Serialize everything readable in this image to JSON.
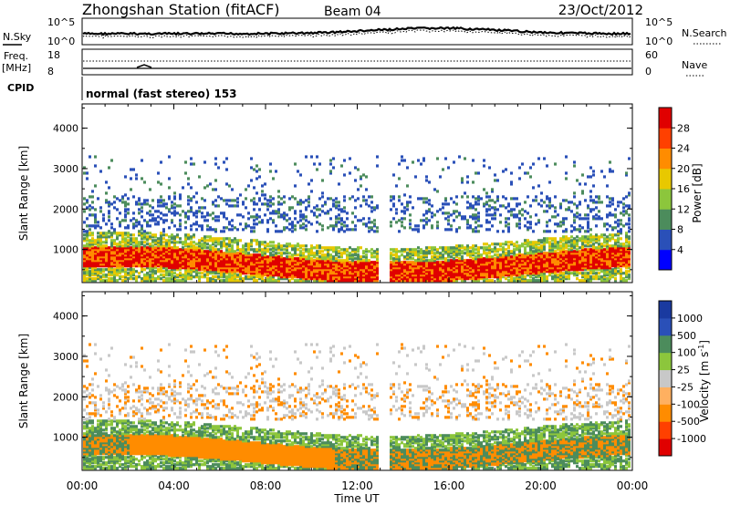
{
  "header": {
    "station": "Zhongshan Station (fitACF)",
    "beam": "Beam 04",
    "date": "23/Oct/2012",
    "mode": "normal (fast stereo) 153"
  },
  "noise_panel": {
    "left_label": "N.Sky",
    "right_label": "N.Search",
    "left_ticks": [
      "10^5",
      "10^0"
    ],
    "right_ticks": [
      "10^5",
      "10^0"
    ]
  },
  "freq_panel": {
    "left_label_1": "Freq.",
    "left_label_2": "[MHz]",
    "cpid_label": "CPID",
    "right_label": "Nave",
    "left_ticks": [
      "18",
      "8"
    ],
    "right_ticks": [
      "60",
      "0"
    ]
  },
  "x_axis": {
    "label": "Time UT",
    "ticks": [
      "00:00",
      "04:00",
      "08:00",
      "12:00",
      "16:00",
      "20:00",
      "00:00"
    ]
  },
  "chart_data": [
    {
      "type": "heatmap",
      "title": "Power",
      "ylabel": "Slant Range [km]",
      "yticks": [
        "1000",
        "2000",
        "3000",
        "4000"
      ],
      "ylim": [
        180,
        4600
      ],
      "colorbar_label": "Power [dB]",
      "colorbar_ticks": [
        "28",
        "24",
        "20",
        "16",
        "12",
        "8",
        "4"
      ],
      "colorbar_colors": [
        "#0000ff",
        "#2a50b8",
        "#4c8c5c",
        "#8cc63c",
        "#e8c800",
        "#ff8c00",
        "#ff4000",
        "#e00000"
      ],
      "colors": {
        "low": "#2a50b8",
        "mid": "#4c8c5c",
        "green": "#8cc63c",
        "yellow": "#e8c800",
        "orange": "#ff8c00",
        "red": "#e00000"
      }
    },
    {
      "type": "heatmap",
      "title": "Velocity",
      "ylabel": "Slant Range [km]",
      "yticks": [
        "1000",
        "2000",
        "3000",
        "4000"
      ],
      "ylim": [
        180,
        4600
      ],
      "colorbar_label": "Velocity [m s",
      "colorbar_label_sup": "-1",
      "colorbar_label_end": "]",
      "colorbar_ticks": [
        "1000",
        "500",
        "100",
        "25",
        "-25",
        "-100",
        "-500",
        "-1000"
      ],
      "colorbar_colors": [
        "#e00000",
        "#ff4000",
        "#ff8c00",
        "#ffb060",
        "#c8c8c8",
        "#8cc63c",
        "#4c8c5c",
        "#2a50b8",
        "#1a3aa0"
      ],
      "colors": {
        "ground": "#c8c8c8",
        "orange": "#ff8c00",
        "green": "#4c8c5c",
        "lightgreen": "#8cc63c",
        "blue": "#2a50b8"
      }
    }
  ]
}
